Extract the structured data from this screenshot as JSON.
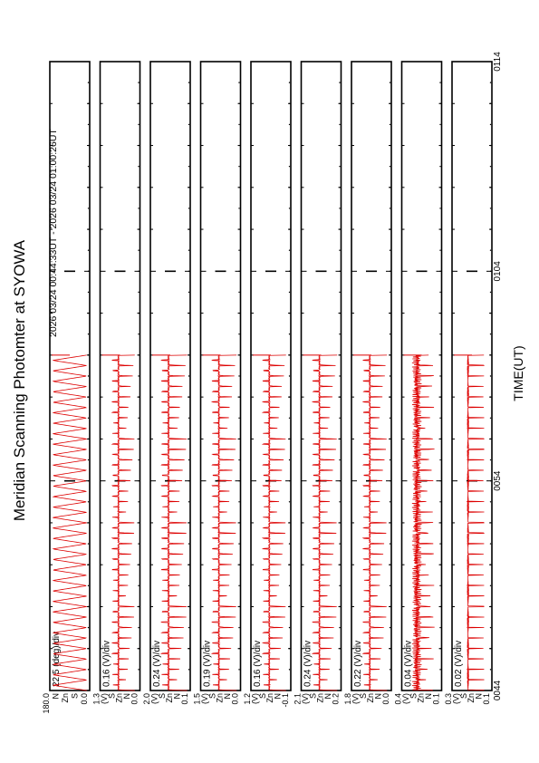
{
  "title": "Meridian Scanning Photomter at SYOWA",
  "time_range": "2026 03/24 00:44:33UT - 2026 03/24 01:00:26UT",
  "xlabel": "TIME(UT)",
  "colors": {
    "trace": "#dd0000",
    "frame": "#000000"
  },
  "chart_data": {
    "type": "line",
    "time_ticks": [
      "0044",
      "0054",
      "0104",
      "0114"
    ],
    "x_range_minutes": [
      0,
      30
    ],
    "data_end_minute": 16,
    "panels": [
      {
        "scale": "22.5 (deg)/div",
        "y_ticks": [
          "180.0",
          "N",
          "Zn",
          "S",
          "0.0"
        ],
        "waveform": "triangle",
        "cycles": 32,
        "amplitude": 0.95
      },
      {
        "scale": "0.16 (V)/div",
        "y_ticks": [
          "1.3",
          "(V)",
          "S",
          "Zn",
          "N",
          "0.0"
        ],
        "waveform": "spike",
        "cycles": 32,
        "amplitude": 0.35
      },
      {
        "scale": "0.24 (V)/div",
        "y_ticks": [
          "2.0",
          "(V)",
          "S",
          "Zn",
          "N",
          "0.1"
        ],
        "waveform": "spike",
        "cycles": 32,
        "amplitude": 0.4
      },
      {
        "scale": "0.19 (V)/div",
        "y_ticks": [
          "1.5",
          "(V)",
          "S",
          "Zn",
          "N",
          "0.0"
        ],
        "waveform": "spike",
        "cycles": 32,
        "amplitude": 0.38
      },
      {
        "scale": "0.16 (V)/div",
        "y_ticks": [
          "1.2",
          "(V)",
          "S",
          "Zn",
          "N",
          "-0.1"
        ],
        "waveform": "spike",
        "cycles": 32,
        "amplitude": 0.36
      },
      {
        "scale": "0.24 (V)/div",
        "y_ticks": [
          "2.1",
          "(V)",
          "S",
          "Zn",
          "N",
          "0.2"
        ],
        "waveform": "spike",
        "cycles": 32,
        "amplitude": 0.38
      },
      {
        "scale": "0.22 (V)/div",
        "y_ticks": [
          "1.8",
          "(V)",
          "S",
          "Zn",
          "N",
          "0.0"
        ],
        "waveform": "spike",
        "cycles": 32,
        "amplitude": 0.37
      },
      {
        "scale": "0.04 (V)/div",
        "y_ticks": [
          "0.4",
          "(V)",
          "S",
          "Zn",
          "N",
          "0.1"
        ],
        "waveform": "noisy",
        "cycles": 32,
        "amplitude": 0.45
      },
      {
        "scale": "0.02 (V)/div",
        "y_ticks": [
          "0.3",
          "(V)",
          "S",
          "Zn",
          "N",
          "0.1"
        ],
        "waveform": "sparse",
        "cycles": 32,
        "amplitude": 0.4
      }
    ]
  }
}
